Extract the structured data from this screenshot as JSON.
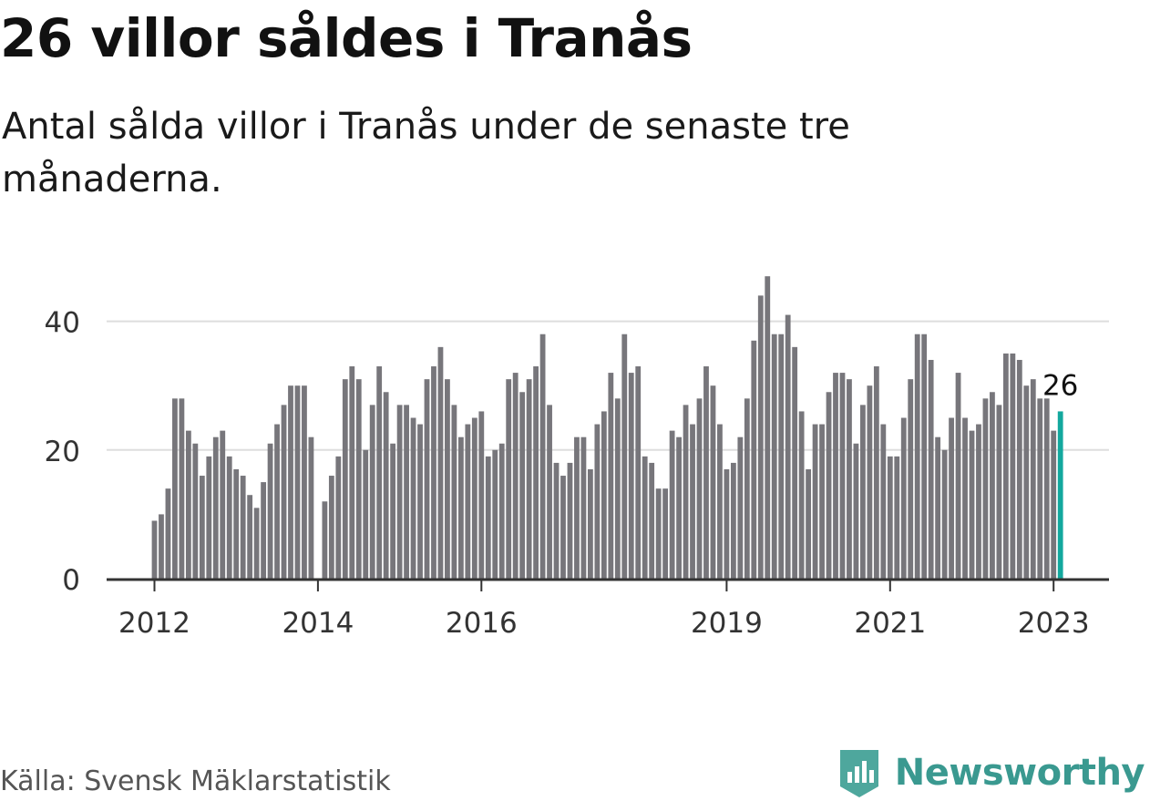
{
  "title": "26 villor såldes i Tranås",
  "subtitle": "Antal sålda villor i Tranås under de senaste tre månaderna.",
  "source": "Källa: Svensk Mäklarstatistik",
  "brand": {
    "name": "Newsworthy",
    "icon": "newsworthy-logo-icon"
  },
  "colors": {
    "bar": "#77767b",
    "highlight": "#13a89e",
    "grid": "#dddddd",
    "axis": "#333333",
    "text": "#111111",
    "brand": "#3a9990"
  },
  "chart_data": {
    "type": "bar",
    "title": "26 villor såldes i Tranås",
    "xlabel": "",
    "ylabel": "",
    "ylim": [
      0,
      48
    ],
    "yticks": [
      0,
      20,
      40
    ],
    "grid": true,
    "x_start": "2012-01",
    "x_tick_labels": [
      "2012",
      "2014",
      "2016",
      "2019",
      "2021",
      "2023"
    ],
    "highlight_label": "26",
    "series": [
      {
        "name": "Antal sålda villor",
        "values": [
          9,
          10,
          14,
          28,
          28,
          23,
          21,
          16,
          19,
          22,
          23,
          19,
          17,
          16,
          13,
          11,
          15,
          21,
          24,
          27,
          30,
          30,
          30,
          22,
          null,
          12,
          16,
          19,
          31,
          33,
          31,
          20,
          27,
          33,
          29,
          21,
          27,
          27,
          25,
          24,
          31,
          33,
          36,
          31,
          27,
          22,
          24,
          25,
          26,
          19,
          20,
          21,
          31,
          32,
          29,
          31,
          33,
          38,
          27,
          18,
          16,
          18,
          22,
          22,
          17,
          24,
          26,
          32,
          28,
          38,
          32,
          33,
          19,
          18,
          14,
          14,
          23,
          22,
          27,
          24,
          28,
          33,
          30,
          24,
          17,
          18,
          22,
          28,
          37,
          44,
          47,
          38,
          38,
          41,
          36,
          26,
          17,
          24,
          24,
          29,
          32,
          32,
          31,
          21,
          27,
          30,
          33,
          24,
          19,
          19,
          25,
          31,
          38,
          38,
          34,
          22,
          20,
          25,
          32,
          25,
          23,
          24,
          28,
          29,
          27,
          35,
          35,
          34,
          30,
          31,
          28,
          28,
          23,
          26
        ]
      }
    ]
  }
}
